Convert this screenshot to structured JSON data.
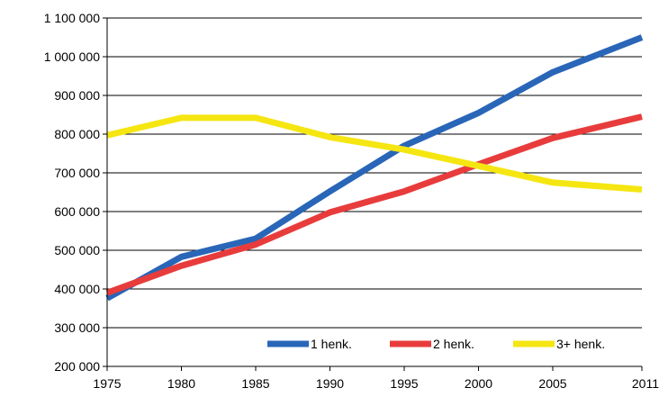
{
  "chart_data": {
    "type": "line",
    "title": "",
    "xlabel": "",
    "ylabel": "",
    "x": [
      1975,
      1980,
      1985,
      1990,
      1995,
      2000,
      2005,
      2011
    ],
    "x_tick_labels": [
      "1975",
      "1980",
      "1985",
      "1990",
      "1995",
      "2000",
      "2005",
      "2011"
    ],
    "ylim": [
      200000,
      1100000
    ],
    "y_ticks": [
      200000,
      300000,
      400000,
      500000,
      600000,
      700000,
      800000,
      900000,
      1000000,
      1100000
    ],
    "y_tick_labels": [
      "200 000",
      "300 000",
      "400 000",
      "500 000",
      "600 000",
      "700 000",
      "800 000",
      "900 000",
      "1 000 000",
      "1 100 000"
    ],
    "grid": "horizontal",
    "legend_position": "bottom-right inside plot",
    "series": [
      {
        "name": "1 henk.",
        "color": "#2966b8",
        "values": [
          376000,
          483000,
          530000,
          652000,
          770000,
          855000,
          960000,
          1050000
        ]
      },
      {
        "name": "2 henk.",
        "color": "#e83c3c",
        "values": [
          390000,
          460000,
          515000,
          598000,
          652000,
          722000,
          790000,
          845000
        ]
      },
      {
        "name": "3+ henk.",
        "color": "#f5e612",
        "values": [
          797000,
          842000,
          842000,
          792000,
          760000,
          718000,
          675000,
          657000
        ]
      }
    ]
  }
}
